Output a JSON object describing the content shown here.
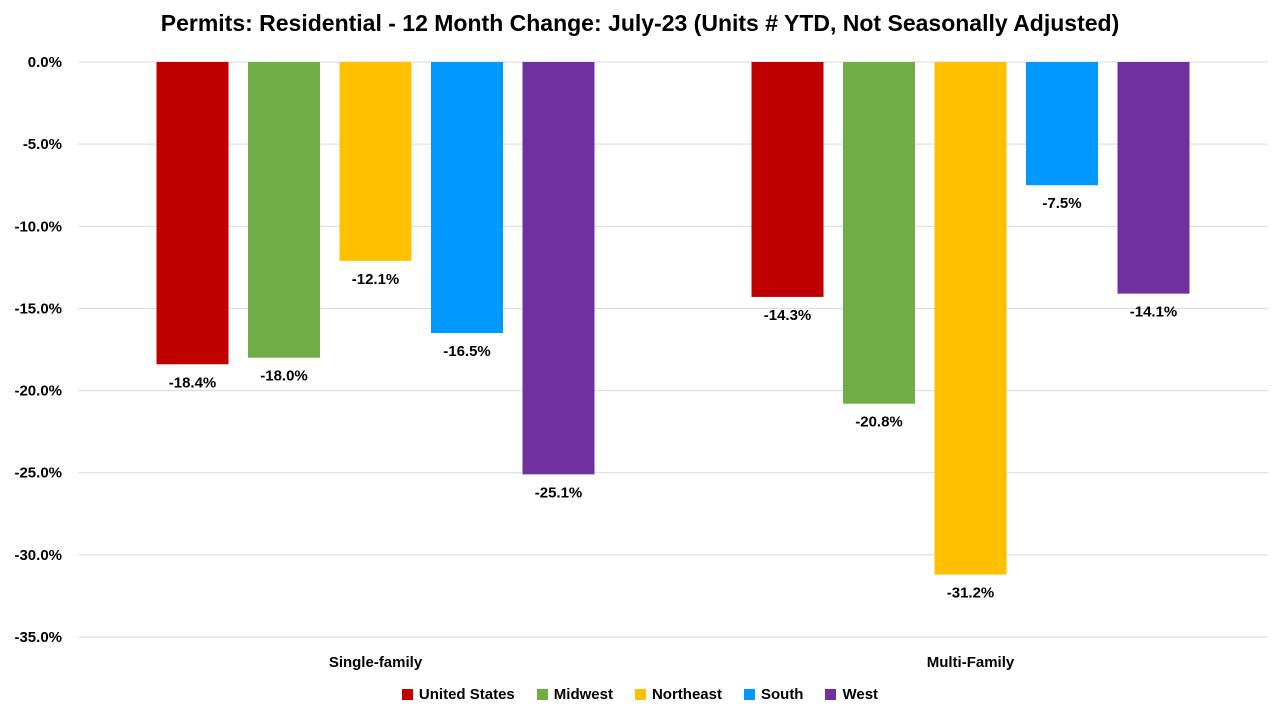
{
  "chart_data": {
    "type": "bar",
    "title": "Permits: Residential - 12 Month Change:  July-23 (Units # YTD, Not Seasonally Adjusted)",
    "categories": [
      "Single-family",
      "Multi-Family"
    ],
    "series": [
      {
        "name": "United States",
        "color": "#C00000",
        "values": [
          -18.4,
          -14.3
        ],
        "labels": [
          "-18.4%",
          "-14.3%"
        ]
      },
      {
        "name": "Midwest",
        "color": "#70AD47",
        "values": [
          -18.0,
          -20.8
        ],
        "labels": [
          "-18.0%",
          "-20.8%"
        ]
      },
      {
        "name": "Northeast",
        "color": "#FFC000",
        "values": [
          -12.1,
          -31.2
        ],
        "labels": [
          "-12.1%",
          "-31.2%"
        ]
      },
      {
        "name": "South",
        "color": "#0099FF",
        "values": [
          -16.5,
          -7.5
        ],
        "labels": [
          "-16.5%",
          "-7.5%"
        ]
      },
      {
        "name": "West",
        "color": "#7030A0",
        "values": [
          -25.1,
          -14.1
        ],
        "labels": [
          "-25.1%",
          "-14.1%"
        ]
      }
    ],
    "yticks": [
      {
        "value": 0,
        "label": "0.0%"
      },
      {
        "value": -5,
        "label": "-5.0%"
      },
      {
        "value": -10,
        "label": "-10.0%"
      },
      {
        "value": -15,
        "label": "-15.0%"
      },
      {
        "value": -20,
        "label": "-20.0%"
      },
      {
        "value": -25,
        "label": "-25.0%"
      },
      {
        "value": -30,
        "label": "-30.0%"
      },
      {
        "value": -35,
        "label": "-35.0%"
      }
    ],
    "ylim": [
      -35,
      0
    ],
    "xlabel": "",
    "ylabel": "",
    "grid": true,
    "legend_position": "bottom"
  }
}
